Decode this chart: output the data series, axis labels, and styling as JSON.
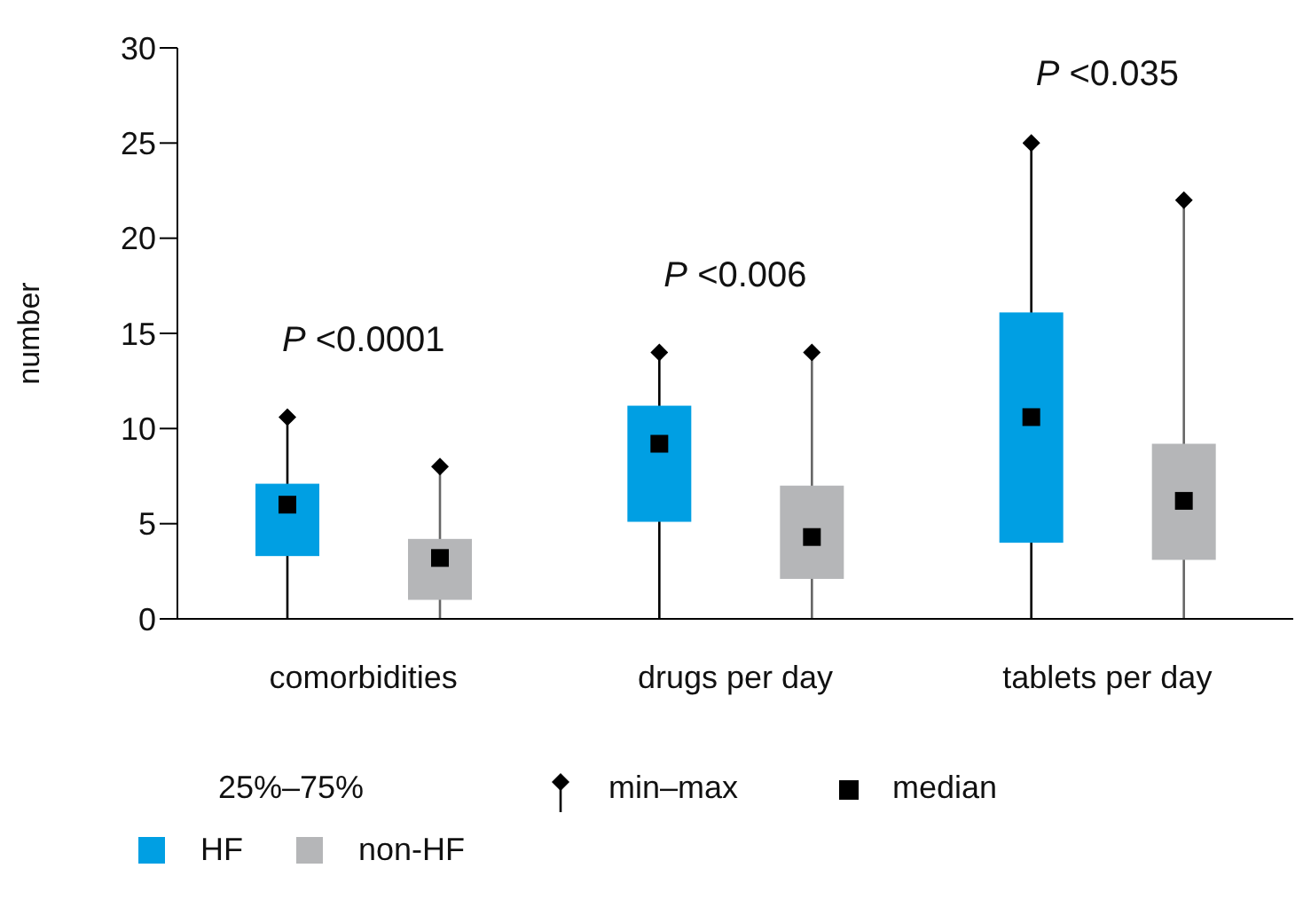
{
  "chart_data": {
    "type": "box",
    "ylabel": "number",
    "categories": [
      "comorbidities",
      "drugs per day",
      "tablets per day"
    ],
    "series": [
      {
        "name": "HF",
        "color": "#009fe3",
        "boxes": [
          {
            "low": 0,
            "q1": 3.3,
            "median": 6.0,
            "q3": 7.1,
            "high": 10.6
          },
          {
            "low": 0,
            "q1": 5.1,
            "median": 9.2,
            "q3": 11.2,
            "high": 14
          },
          {
            "low": 0,
            "q1": 4.0,
            "median": 10.6,
            "q3": 16.1,
            "high": 25
          }
        ]
      },
      {
        "name": "non-HF",
        "color": "#b5b6b8",
        "boxes": [
          {
            "low": 0,
            "q1": 1.0,
            "median": 3.2,
            "q3": 4.2,
            "high": 8
          },
          {
            "low": 0,
            "q1": 2.1,
            "median": 4.3,
            "q3": 7.0,
            "high": 14
          },
          {
            "low": 0,
            "q1": 3.1,
            "median": 6.2,
            "q3": 9.2,
            "high": 22
          }
        ]
      }
    ],
    "ylim": [
      0,
      30
    ],
    "yticks": [
      0,
      5,
      10,
      15,
      20,
      25,
      30
    ],
    "grid": false,
    "legend": "bottom",
    "annotations": [
      "P <0.0001",
      "P <0.006",
      "P <0.035",
      "25%–75%",
      "min–max",
      "median"
    ]
  }
}
